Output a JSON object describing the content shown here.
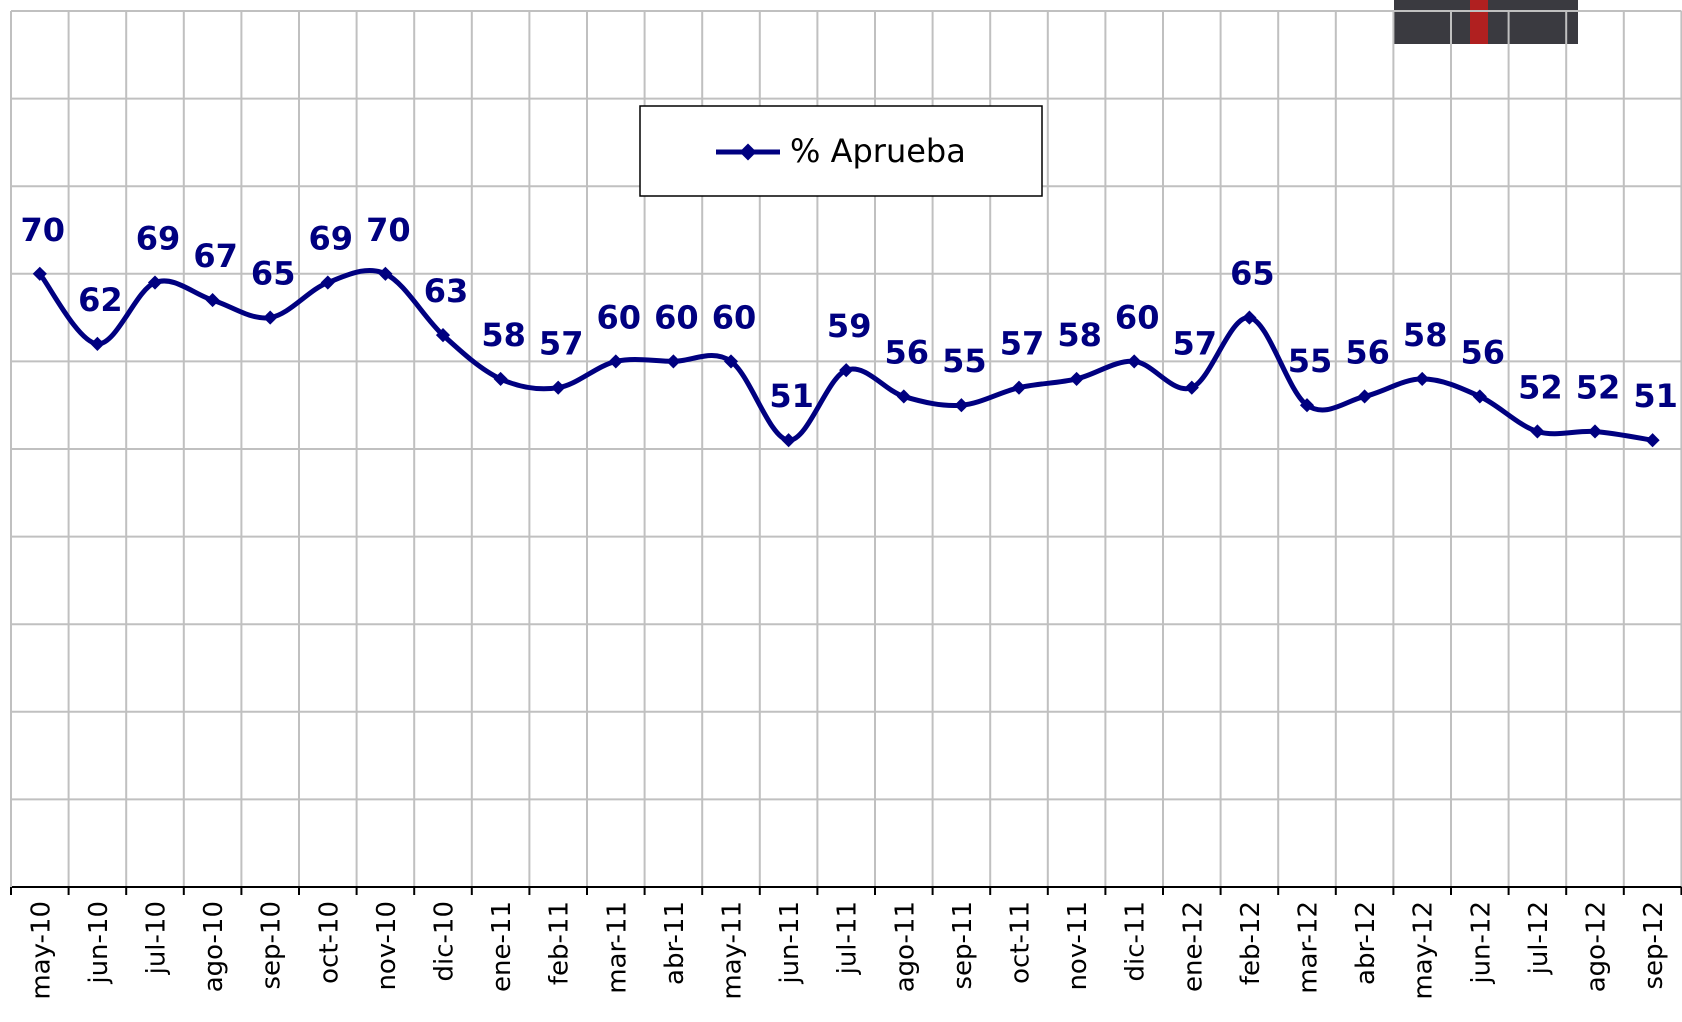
{
  "chart_data": {
    "type": "line",
    "categories": [
      "may-10",
      "jun-10",
      "jul-10",
      "ago-10",
      "sep-10",
      "oct-10",
      "nov-10",
      "dic-10",
      "ene-11",
      "feb-11",
      "mar-11",
      "abr-11",
      "may-11",
      "jun-11",
      "jul-11",
      "ago-11",
      "sep-11",
      "oct-11",
      "nov-11",
      "dic-11",
      "ene-12",
      "feb-12",
      "mar-12",
      "abr-12",
      "may-12",
      "jun-12",
      "jul-12",
      "ago-12",
      "sep-12"
    ],
    "series": [
      {
        "name": "% Aprueba",
        "color": "#000080",
        "values": [
          70,
          62,
          69,
          67,
          65,
          69,
          70,
          63,
          58,
          57,
          60,
          60,
          60,
          51,
          59,
          56,
          55,
          57,
          58,
          60,
          57,
          65,
          55,
          56,
          58,
          56,
          52,
          52,
          51
        ]
      }
    ],
    "ylim": [
      0,
      100
    ],
    "yticks": [
      0,
      10,
      20,
      30,
      40,
      50,
      60,
      70,
      80,
      90,
      100
    ],
    "grid": true
  }
}
